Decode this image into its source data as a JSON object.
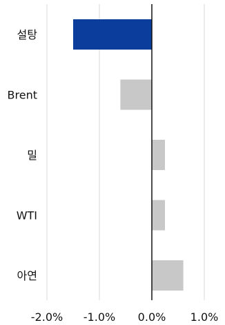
{
  "chart_data": {
    "type": "bar",
    "orientation": "horizontal",
    "categories": [
      "설탕",
      "Brent",
      "밀",
      "WTI",
      "아연"
    ],
    "values": [
      -1.5,
      -0.6,
      0.25,
      0.25,
      0.6
    ],
    "xlim": [
      -2.0,
      1.0
    ],
    "xticks": [
      -2.0,
      -1.0,
      0.0,
      1.0
    ],
    "xtick_labels": [
      "-2.0%",
      "-1.0%",
      "0.0%",
      "1.0%"
    ],
    "grid": "vertical",
    "title": "",
    "xlabel": "",
    "ylabel": "",
    "colors": {
      "highlight": "#0b3d9c",
      "default": "#c8c8c8",
      "grid": "#d9d9d9",
      "zero_line": "#111111"
    },
    "highlight_index": 0
  }
}
